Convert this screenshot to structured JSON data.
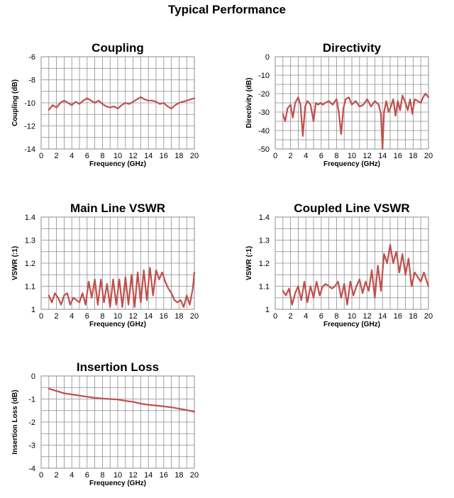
{
  "page": {
    "title": "Typical Performance"
  },
  "colors": {
    "series": "#c0504d",
    "grid": "#8c8c8c"
  },
  "chart_data": [
    {
      "type": "line",
      "title": "Coupling",
      "xlabel": "Frequency (GHz)",
      "ylabel": "Coupling (dB)",
      "xlim": [
        0,
        20
      ],
      "ylim": [
        -14,
        -6
      ],
      "xticks": [
        0,
        2,
        4,
        6,
        8,
        10,
        12,
        14,
        16,
        18,
        20
      ],
      "yticks": [
        -14,
        -12,
        -10,
        -8,
        -6
      ],
      "grid": true,
      "series": [
        {
          "x": [
            1,
            1.5,
            2,
            2.5,
            3,
            3.5,
            4,
            4.5,
            5,
            5.5,
            6,
            6.5,
            7,
            7.5,
            8,
            8.5,
            9,
            9.5,
            10,
            10.5,
            11,
            11.5,
            12,
            12.5,
            13,
            13.5,
            14,
            14.5,
            15,
            15.5,
            16,
            16.5,
            17,
            17.5,
            18,
            18.5,
            19,
            19.5,
            20
          ],
          "y": [
            -10.6,
            -10.2,
            -10.4,
            -10.0,
            -9.8,
            -10.0,
            -10.2,
            -9.9,
            -10.1,
            -9.8,
            -9.6,
            -9.8,
            -10.0,
            -9.8,
            -10.1,
            -10.3,
            -10.4,
            -10.3,
            -10.5,
            -10.2,
            -10.0,
            -10.1,
            -9.9,
            -9.7,
            -9.5,
            -9.7,
            -9.8,
            -9.8,
            -9.9,
            -10.1,
            -10.0,
            -10.3,
            -10.5,
            -10.2,
            -10.0,
            -9.9,
            -9.8,
            -9.7,
            -9.6
          ]
        }
      ]
    },
    {
      "type": "line",
      "title": "Directivity",
      "xlabel": "Frequency (GHz)",
      "ylabel": "Directivity (dB)",
      "xlim": [
        0,
        20
      ],
      "ylim": [
        -50,
        0
      ],
      "xticks": [
        0,
        2,
        4,
        6,
        8,
        10,
        12,
        14,
        16,
        18,
        20
      ],
      "yticks": [
        -50,
        -40,
        -30,
        -20,
        -10,
        0
      ],
      "grid": true,
      "series": [
        {
          "x": [
            1,
            1.3,
            1.6,
            2,
            2.3,
            2.6,
            3,
            3.3,
            3.6,
            3.9,
            4.2,
            4.6,
            5,
            5.3,
            5.6,
            5.9,
            6.2,
            6.5,
            7,
            7.5,
            8,
            8.3,
            8.6,
            8.9,
            9.2,
            9.6,
            10,
            10.5,
            11,
            11.5,
            12,
            12.5,
            13,
            13.5,
            13.8,
            14,
            14.2,
            14.5,
            14.8,
            15.1,
            15.4,
            15.7,
            16,
            16.3,
            16.6,
            17,
            17.3,
            17.6,
            17.9,
            18.2,
            18.6,
            19,
            19.3,
            19.6,
            20
          ],
          "y": [
            -31,
            -35,
            -28,
            -26,
            -33,
            -25,
            -22,
            -26,
            -43,
            -27,
            -24,
            -26,
            -35,
            -25,
            -26,
            -25,
            -26,
            -25,
            -24,
            -26,
            -23,
            -30,
            -42,
            -28,
            -23,
            -22,
            -26,
            -24,
            -27,
            -26,
            -23,
            -27,
            -24,
            -26,
            -31,
            -50,
            -30,
            -24,
            -30,
            -27,
            -23,
            -32,
            -24,
            -29,
            -21,
            -25,
            -29,
            -23,
            -31,
            -23,
            -24,
            -25,
            -22,
            -20,
            -22
          ]
        }
      ]
    },
    {
      "type": "line",
      "title": "Main Line VSWR",
      "xlabel": "Frequency (GHz)",
      "ylabel": "VSWR (:1)",
      "xlim": [
        0,
        20
      ],
      "ylim": [
        1,
        1.4
      ],
      "xticks": [
        0,
        2,
        4,
        6,
        8,
        10,
        12,
        14,
        16,
        18,
        20
      ],
      "yticks": [
        1,
        1.1,
        1.2,
        1.3,
        1.4
      ],
      "grid": true,
      "series": [
        {
          "x": [
            1,
            1.4,
            1.8,
            2.2,
            2.6,
            3,
            3.4,
            3.8,
            4.2,
            4.6,
            5,
            5.4,
            5.8,
            6.2,
            6.6,
            7,
            7.4,
            7.8,
            8.2,
            8.6,
            9,
            9.4,
            9.8,
            10.2,
            10.6,
            11,
            11.4,
            11.8,
            12.2,
            12.6,
            13,
            13.4,
            13.8,
            14.2,
            14.6,
            15,
            15.4,
            15.8,
            16.2,
            16.6,
            17,
            17.4,
            17.8,
            18.2,
            18.6,
            19,
            19.4,
            19.8,
            20
          ],
          "y": [
            1.06,
            1.03,
            1.07,
            1.05,
            1.02,
            1.06,
            1.07,
            1.02,
            1.05,
            1.04,
            1.03,
            1.07,
            1.02,
            1.12,
            1.05,
            1.13,
            1.02,
            1.13,
            1.03,
            1.11,
            1.01,
            1.13,
            1.02,
            1.13,
            1.01,
            1.14,
            1.02,
            1.15,
            1.01,
            1.16,
            1.03,
            1.17,
            1.04,
            1.18,
            1.06,
            1.17,
            1.13,
            1.16,
            1.12,
            1.09,
            1.07,
            1.04,
            1.03,
            1.04,
            1.01,
            1.06,
            1.02,
            1.09,
            1.16
          ]
        }
      ]
    },
    {
      "type": "line",
      "title": "Coupled Line VSWR",
      "xlabel": "Frequency (GHz)",
      "ylabel": "VSWR (:1)",
      "xlim": [
        0,
        20
      ],
      "ylim": [
        1,
        1.4
      ],
      "xticks": [
        0,
        2,
        4,
        6,
        8,
        10,
        12,
        14,
        16,
        18,
        20
      ],
      "yticks": [
        1,
        1.1,
        1.2,
        1.3,
        1.4
      ],
      "grid": true,
      "series": [
        {
          "x": [
            1,
            1.4,
            1.8,
            2.2,
            2.6,
            3,
            3.4,
            3.8,
            4.2,
            4.6,
            5,
            5.4,
            5.8,
            6.2,
            6.6,
            7,
            7.4,
            7.8,
            8.2,
            8.6,
            9,
            9.4,
            9.8,
            10.2,
            10.6,
            11,
            11.4,
            11.8,
            12.2,
            12.6,
            13,
            13.4,
            13.8,
            14.2,
            14.6,
            15,
            15.4,
            15.8,
            16.2,
            16.6,
            17,
            17.4,
            17.8,
            18.2,
            18.6,
            19,
            19.4,
            19.8,
            20
          ],
          "y": [
            1.08,
            1.06,
            1.09,
            1.02,
            1.07,
            1.1,
            1.04,
            1.12,
            1.03,
            1.1,
            1.05,
            1.12,
            1.06,
            1.1,
            1.11,
            1.1,
            1.09,
            1.1,
            1.12,
            1.05,
            1.11,
            1.02,
            1.12,
            1.06,
            1.1,
            1.13,
            1.07,
            1.12,
            1.08,
            1.17,
            1.05,
            1.19,
            1.08,
            1.24,
            1.2,
            1.28,
            1.2,
            1.25,
            1.16,
            1.24,
            1.15,
            1.22,
            1.1,
            1.16,
            1.14,
            1.12,
            1.16,
            1.12,
            1.1
          ]
        }
      ]
    },
    {
      "type": "line",
      "title": "Insertion Loss",
      "xlabel": "Frequency (GHz)",
      "ylabel": "Insertion  Loss (dB)",
      "xlim": [
        0,
        20
      ],
      "ylim": [
        -4,
        0
      ],
      "xticks": [
        0,
        2,
        4,
        6,
        8,
        10,
        12,
        14,
        16,
        18,
        20
      ],
      "yticks": [
        -4,
        -3,
        -2,
        -1,
        0
      ],
      "grid": true,
      "series": [
        {
          "x": [
            1,
            2,
            3,
            4,
            5,
            6,
            7,
            8,
            9,
            10,
            11,
            12,
            13,
            14,
            15,
            16,
            17,
            18,
            19,
            20
          ],
          "y": [
            -0.55,
            -0.65,
            -0.75,
            -0.8,
            -0.85,
            -0.9,
            -0.95,
            -0.98,
            -1.0,
            -1.02,
            -1.08,
            -1.12,
            -1.2,
            -1.25,
            -1.28,
            -1.32,
            -1.36,
            -1.42,
            -1.48,
            -1.55
          ]
        }
      ]
    }
  ]
}
